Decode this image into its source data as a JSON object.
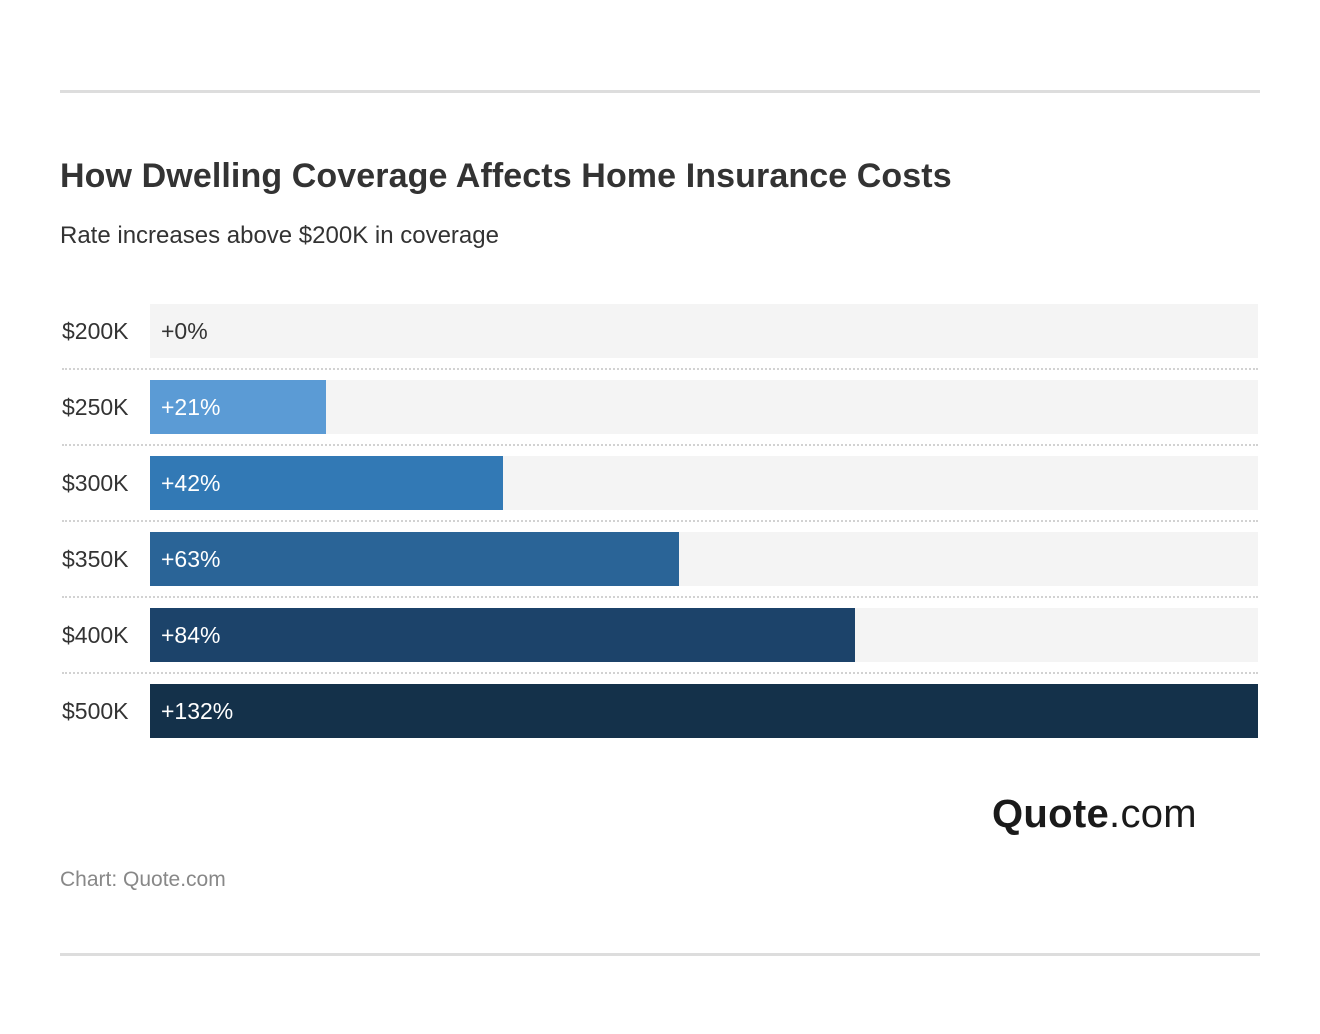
{
  "header": {
    "title": "How Dwelling Coverage Affects Home Insurance Costs",
    "subtitle": "Rate increases above $200K in coverage"
  },
  "chart_data": {
    "type": "bar",
    "orientation": "horizontal",
    "categories": [
      "$200K",
      "$250K",
      "$300K",
      "$350K",
      "$400K",
      "$500K"
    ],
    "values": [
      0,
      21,
      42,
      63,
      84,
      132
    ],
    "value_labels": [
      "+0%",
      "+21%",
      "+42%",
      "+63%",
      "+84%",
      "+132%"
    ],
    "value_unit": "%",
    "xlim": [
      0,
      132
    ],
    "grid": false,
    "bar_colors": [
      "#5b9bd5",
      "#5b9bd5",
      "#3279b5",
      "#2a6497",
      "#1c436a",
      "#14314a"
    ],
    "track_color": "#f4f4f4"
  },
  "branding": {
    "logo_strong": "Quote",
    "logo_light": ".com"
  },
  "footer": {
    "source": "Chart: Quote.com"
  }
}
